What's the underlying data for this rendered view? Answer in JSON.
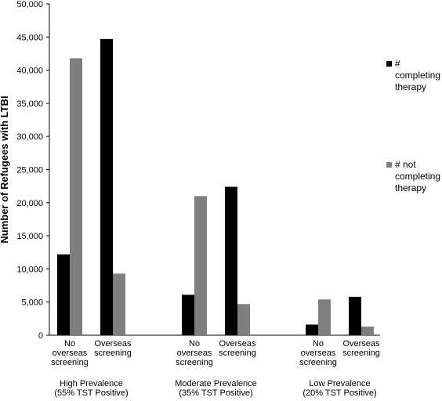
{
  "chart_data": {
    "type": "bar",
    "ylabel": "Number of Refugees with LTBI",
    "ylim": [
      0,
      50000
    ],
    "ytick_step": 5000,
    "y_ticks": [
      "0",
      "5,000",
      "10,000",
      "15,000",
      "20,000",
      "25,000",
      "30,000",
      "35,000",
      "40,000",
      "45,000",
      "50,000"
    ],
    "grid": false,
    "legend_position": "right",
    "groups": [
      {
        "label_lines": [
          "High Prevalence",
          "(55% TST Positive)"
        ],
        "categories": [
          {
            "label_lines": [
              "No",
              "overseas",
              "screening"
            ],
            "values": [
              12200,
              41800
            ]
          },
          {
            "label_lines": [
              "Overseas",
              "screening"
            ],
            "values": [
              44700,
              9300
            ]
          }
        ]
      },
      {
        "label_lines": [
          "Moderate Prevalence",
          "(35% TST Positive)"
        ],
        "categories": [
          {
            "label_lines": [
              "No",
              "overseas",
              "screening"
            ],
            "values": [
              6100,
              21000
            ]
          },
          {
            "label_lines": [
              "Overseas",
              "screening"
            ],
            "values": [
              22400,
              4700
            ]
          }
        ]
      },
      {
        "label_lines": [
          "Low Prevalence",
          "(20% TST Positive)"
        ],
        "categories": [
          {
            "label_lines": [
              "No",
              "overseas",
              "screening"
            ],
            "values": [
              1600,
              5400
            ]
          },
          {
            "label_lines": [
              "Overseas",
              "screening"
            ],
            "values": [
              5800,
              1300
            ]
          }
        ]
      }
    ],
    "series": [
      {
        "name_lines": [
          "#",
          "completing",
          "therapy"
        ],
        "color": "#000000"
      },
      {
        "name_lines": [
          "# not",
          "completing",
          "therapy"
        ],
        "color": "#7f7f7f"
      }
    ]
  }
}
